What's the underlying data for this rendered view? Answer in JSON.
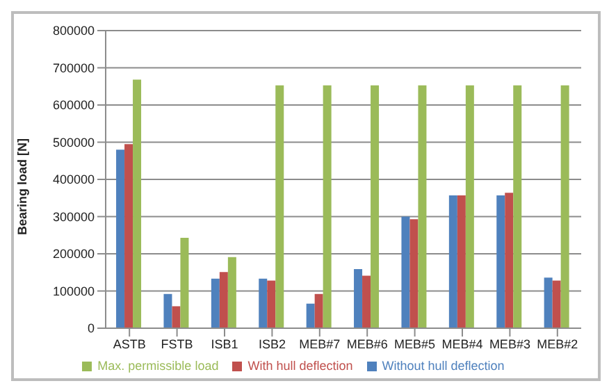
{
  "chart_data": {
    "type": "bar",
    "ylabel": "Bearing load [N]",
    "categories": [
      "ASTB",
      "FSTB",
      "ISB1",
      "ISB2",
      "MEB#7",
      "MEB#6",
      "MEB#5",
      "MEB#4",
      "MEB#3",
      "MEB#2"
    ],
    "series": [
      {
        "name": "Without hull deflection",
        "color": "#4f81bd",
        "values": [
          480000,
          92000,
          133000,
          133000,
          66000,
          159000,
          300000,
          357000,
          357000,
          136000
        ]
      },
      {
        "name": "With hull deflection",
        "color": "#c0504d",
        "values": [
          495000,
          59000,
          151000,
          128000,
          92000,
          141000,
          293000,
          357000,
          364000,
          128000
        ]
      },
      {
        "name": "Max. permissible load",
        "color": "#9bbb59",
        "values": [
          668000,
          243000,
          191000,
          653000,
          653000,
          653000,
          653000,
          653000,
          653000,
          653000
        ]
      }
    ],
    "ylim": [
      0,
      800000
    ],
    "yticks": [
      0,
      100000,
      200000,
      300000,
      400000,
      500000,
      600000,
      700000,
      800000
    ],
    "grid": "y",
    "legend": "bottom"
  }
}
